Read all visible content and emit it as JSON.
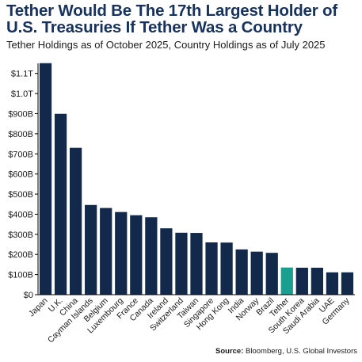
{
  "header": {
    "title_line1": "Tether Would Be The 17th Largest Holder of",
    "title_line2": "U.S. Treasuries If Tether Was a Country",
    "subtitle": "Tether Holdings as of October 2025, Country Holdings as of July 2025"
  },
  "footer": {
    "source_label": "Source:",
    "source_text": "Bloomberg, U.S. Global Investors"
  },
  "chart_data": {
    "type": "bar",
    "title": "Tether Would Be The 17th Largest Holder of U.S. Treasuries If Tether Was a Country",
    "subtitle": "Tether Holdings as of October 2025, Country Holdings as of July 2025",
    "xlabel": "",
    "ylabel": "",
    "unit": "billion USD",
    "ylim": [
      0,
      1150
    ],
    "yticks": [
      0,
      100,
      200,
      300,
      400,
      500,
      600,
      700,
      800,
      900,
      1000,
      1100
    ],
    "ytick_labels": [
      "$0",
      "$100B",
      "$200B",
      "$300B",
      "$400B",
      "$500B",
      "$600B",
      "$700B",
      "$800B",
      "$900B",
      "$1.0T",
      "$1.1T"
    ],
    "grid": false,
    "legend": "none",
    "categories": [
      "Japan",
      "U.K.",
      "China",
      "Cayman Islands",
      "Belgium",
      "Luxembourg",
      "France",
      "Canada",
      "Ireland",
      "Switzerland",
      "Taiwan",
      "Singapore",
      "Hong Kong",
      "India",
      "Norway",
      "Brazil",
      "Tether",
      "South Korea",
      "Saudi Arabia",
      "UAE",
      "Germany"
    ],
    "values": [
      1151,
      899,
      730,
      446,
      431,
      411,
      395,
      385,
      330,
      308,
      307,
      260,
      259,
      225,
      214,
      208,
      135,
      134,
      134,
      111,
      111
    ],
    "colors": {
      "default": "#13294b",
      "highlight": "#1a9e8f",
      "axis": "#000000",
      "text": "#1a1a1a",
      "title": "#17325c"
    },
    "highlight_category": "Tether"
  }
}
